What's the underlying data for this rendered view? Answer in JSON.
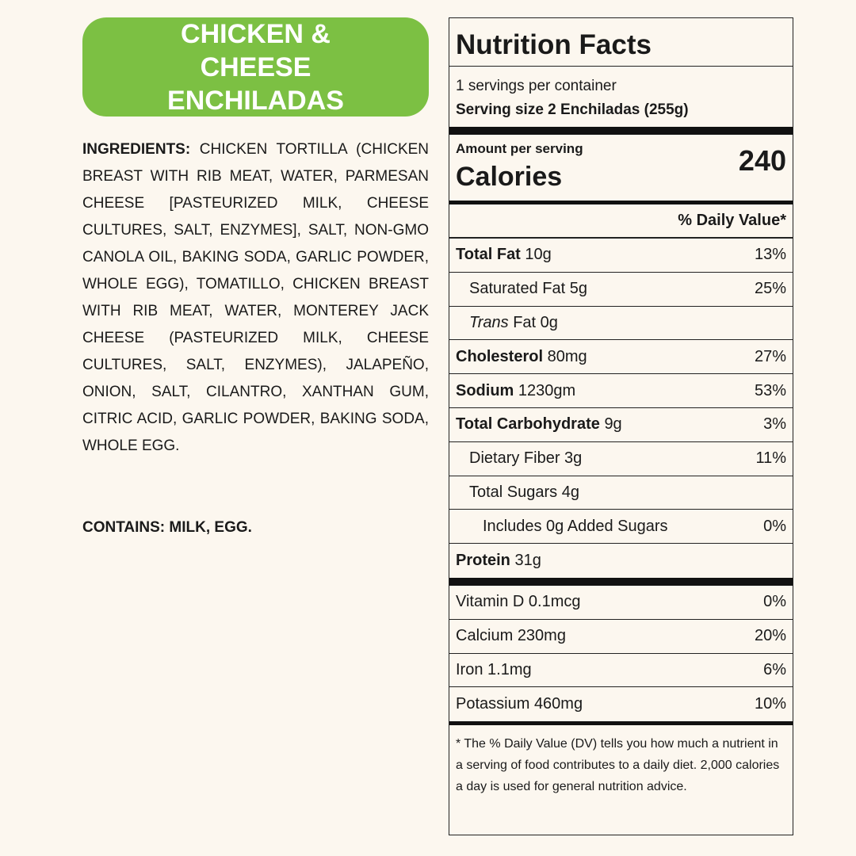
{
  "product": {
    "title": "CHICKEN & CHEESE ENCHILADAS",
    "ingredients_label": "INGREDIENTS:",
    "ingredients": "CHICKEN TORTILLA (CHICKEN BREAST WITH RIB MEAT, WATER, PARMESAN CHEESE [PASTEURIZED MILK, CHEESE CULTURES, SALT, ENZYMES], SALT, NON-GMO CANOLA OIL, BAKING SODA, GARLIC POWDER, WHOLE EGG), TOMATILLO, CHICKEN BREAST WITH RIB MEAT, WATER, MONTEREY JACK CHEESE (PASTEURIZED MILK, CHEESE CULTURES, SALT, ENZYMES), JALAPEÑO, ONION, SALT, CILANTRO, XANTHAN GUM, CITRIC ACID, GARLIC POWDER, BAKING SODA, WHOLE EGG.",
    "contains": "CONTAINS: MILK, EGG."
  },
  "nutrition": {
    "title": "Nutrition Facts",
    "servings": "1 servings per container",
    "serving_size_label": "Serving size",
    "serving_size": "2 Enchiladas (255g)",
    "amount_per_serving": "Amount per serving",
    "calories_label": "Calories",
    "calories": "240",
    "dv_header": "% Daily Value*",
    "rows": [
      {
        "name": "Total Fat",
        "amount": "10g",
        "dv": "13%",
        "bold": true,
        "indent": 0
      },
      {
        "name": "Saturated Fat",
        "amount": "5g",
        "dv": "25%",
        "bold": false,
        "indent": 1
      },
      {
        "italic": "Trans",
        "name": "Fat",
        "amount": "0g",
        "bold": false,
        "indent": 1
      },
      {
        "name": "Cholesterol",
        "amount": "80mg",
        "dv": "27%",
        "bold": true,
        "indent": 0
      },
      {
        "name": "Sodium",
        "amount": "1230gm",
        "dv": "53%",
        "bold": true,
        "indent": 0
      },
      {
        "name": "Total Carbohydrate",
        "amount": "9g",
        "dv": "3%",
        "bold": true,
        "indent": 0
      },
      {
        "name": "Dietary Fiber",
        "amount": "3g",
        "dv": "11%",
        "bold": false,
        "indent": 1
      },
      {
        "name": "Total Sugars",
        "amount": "4g",
        "bold": false,
        "indent": 1
      },
      {
        "name": "Includes 0g Added Sugars",
        "dv": "0%",
        "bold": false,
        "indent": 2
      },
      {
        "name": "Protein",
        "amount": "31g",
        "bold": true,
        "indent": 0
      }
    ],
    "vitamins": [
      {
        "name": "Vitamin D",
        "amount": "0.1mcg",
        "dv": "0%"
      },
      {
        "name": "Calcium",
        "amount": "230mg",
        "dv": "20%"
      },
      {
        "name": "Iron",
        "amount": "1.1mg",
        "dv": "6%"
      },
      {
        "name": "Potassium",
        "amount": "460mg",
        "dv": "10%"
      }
    ],
    "footnote": "* The % Daily Value (DV) tells you how much a nutrient in a serving of food contributes to a daily diet. 2,000 calories a day is used for general nutrition advice."
  }
}
